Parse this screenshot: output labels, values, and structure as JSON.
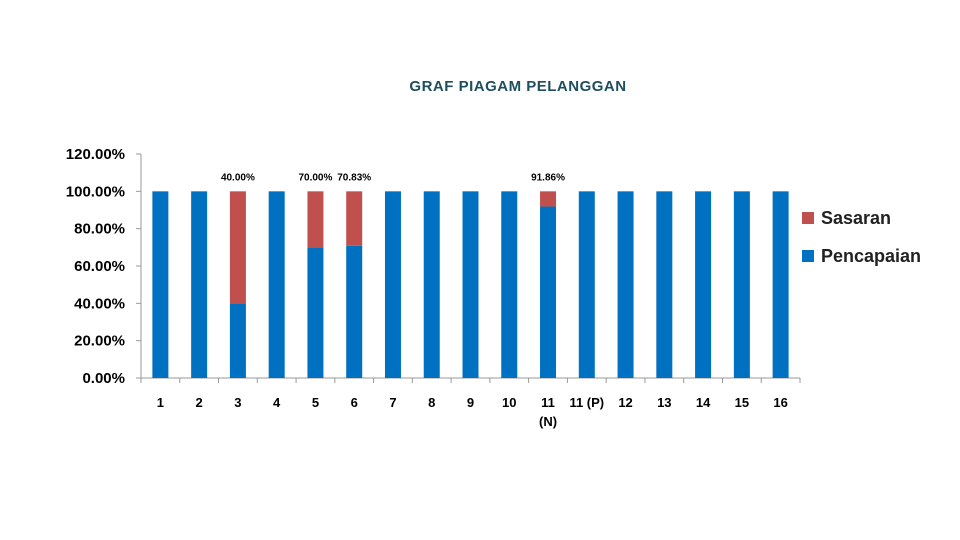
{
  "colors": {
    "title": "#1f4e5f",
    "sasaran": "#c0504d",
    "pencapaian": "#0070c0",
    "axis": "#999999",
    "text": "#000000"
  },
  "chart_data": {
    "type": "bar",
    "stacked": true,
    "title": "GRAF PIAGAM PELANGGAN",
    "xlabel": "",
    "ylabel": "",
    "ylim": [
      0,
      120
    ],
    "y_ticks": [
      "0.00%",
      "20.00%",
      "40.00%",
      "60.00%",
      "80.00%",
      "100.00%",
      "120.00%"
    ],
    "y_tick_values": [
      0,
      20,
      40,
      60,
      80,
      100,
      120
    ],
    "categories": [
      "1",
      "2",
      "3",
      "4",
      "5",
      "6",
      "7",
      "8",
      "9",
      "10",
      "11 (N)",
      "11 (P)",
      "12",
      "13",
      "14",
      "15",
      "16"
    ],
    "category_lines": [
      [
        "1"
      ],
      [
        "2"
      ],
      [
        "3"
      ],
      [
        "4"
      ],
      [
        "5"
      ],
      [
        "6"
      ],
      [
        "7"
      ],
      [
        "8"
      ],
      [
        "9"
      ],
      [
        "10"
      ],
      [
        "11",
        "(N)"
      ],
      [
        "11 (P)"
      ],
      [
        "12"
      ],
      [
        "13"
      ],
      [
        "14"
      ],
      [
        "15"
      ],
      [
        "16"
      ]
    ],
    "series": [
      {
        "name": "Pencapaian",
        "values": [
          100,
          100,
          40,
          100,
          70,
          70.83,
          100,
          100,
          100,
          100,
          91.86,
          100,
          100,
          100,
          100,
          100,
          100
        ]
      },
      {
        "name": "Sasaran",
        "values": [
          0,
          0,
          60,
          0,
          30,
          29.17,
          0,
          0,
          0,
          0,
          8.14,
          0,
          0,
          0,
          0,
          0,
          0
        ]
      }
    ],
    "data_labels": [
      "",
      "",
      "40.00%",
      "",
      "70.00%",
      "70.83%",
      "",
      "",
      "",
      "",
      "91.86%",
      "",
      "",
      "",
      "",
      "",
      ""
    ],
    "grid": false,
    "legend_position": "right",
    "legend_order": [
      "Sasaran",
      "Pencapaian"
    ]
  }
}
